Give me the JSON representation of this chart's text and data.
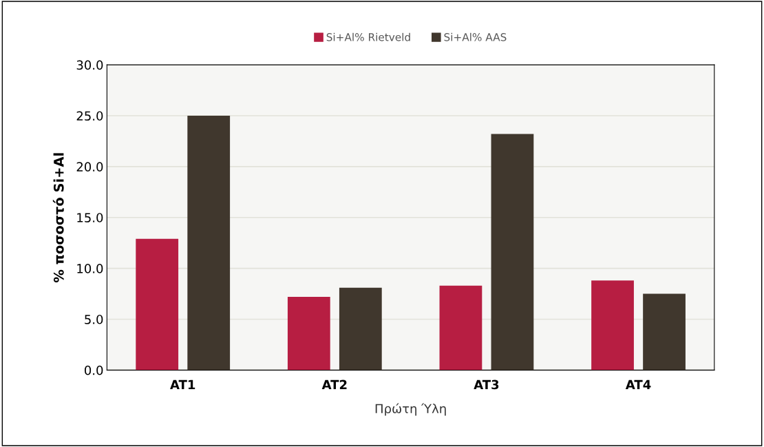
{
  "chart_data": {
    "type": "bar",
    "categories": [
      "AT1",
      "AT2",
      "AT3",
      "AT4"
    ],
    "series": [
      {
        "name": "Si+Al% Rietveld",
        "color": "#b71e42",
        "values": [
          12.9,
          7.2,
          8.3,
          8.8
        ]
      },
      {
        "name": "Si+Al% AAS",
        "color": "#40372d",
        "values": [
          25.0,
          8.1,
          23.2,
          7.5
        ]
      }
    ],
    "xlabel": "Πρώτη Ύλη",
    "ylabel": "% ποσοστό Si+Al",
    "ylim": [
      0,
      30
    ],
    "yticks": [
      {
        "value": 0,
        "label": "0.0"
      },
      {
        "value": 5,
        "label": "5.0"
      },
      {
        "value": 10,
        "label": "10.0"
      },
      {
        "value": 15,
        "label": "15.0"
      },
      {
        "value": 20,
        "label": "20.0"
      },
      {
        "value": 25,
        "label": "25.0"
      },
      {
        "value": 30,
        "label": "30.0"
      }
    ],
    "grid": "y",
    "legend": "top"
  }
}
